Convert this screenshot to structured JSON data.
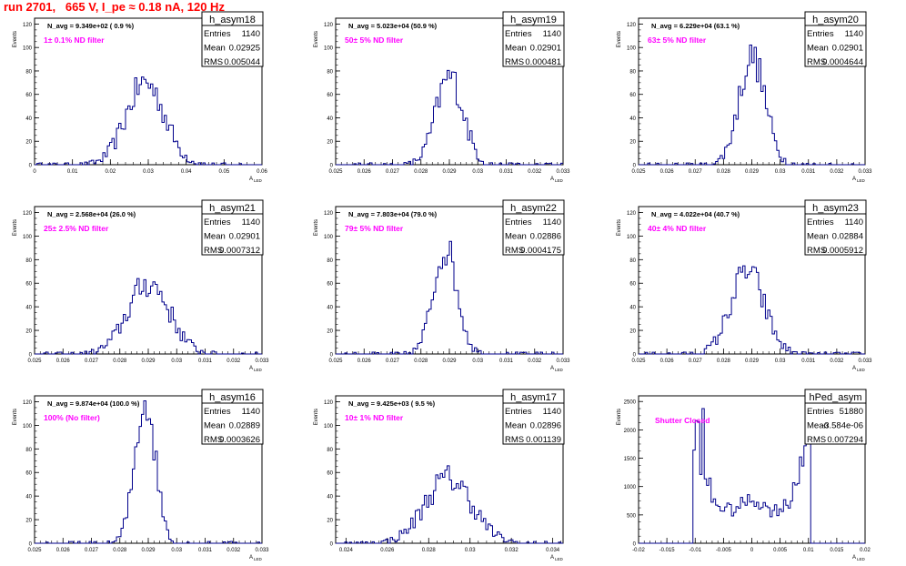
{
  "run_title": "run 2701,   665 V, I_pe ≈ 0.18 nA, 120 Hz",
  "stats_labels": {
    "entries": "Entries",
    "mean": "Mean",
    "rms": "RMS"
  },
  "y_axis_title": "Events",
  "x_axis_title": "A",
  "x_axis_subscript": "LED",
  "colors": {
    "histogram": "#00008b",
    "annotation": "#ff00ff",
    "run_title": "#ff0000",
    "text": "#000000"
  },
  "chart_data": [
    {
      "id": "h_asym18",
      "type": "histogram",
      "name": "h_asym18",
      "navg": "N_avg = 9.349e+02 ( 0.9 %)",
      "filter": "1± 0.1% ND filter",
      "entries": "1140",
      "mean": "0.02925",
      "rms": "0.005044",
      "xlim": [
        0,
        0.06
      ],
      "ylim": [
        0,
        125
      ],
      "xticks": [
        "0",
        "0.01",
        "0.02",
        "0.03",
        "0.04",
        "0.05",
        "0.06"
      ],
      "yticks": [
        "0",
        "20",
        "40",
        "60",
        "80",
        "100",
        "120"
      ],
      "mu": 0.02925,
      "sigma": 0.005044,
      "peak": 70,
      "shape": "gauss"
    },
    {
      "id": "h_asym19",
      "type": "histogram",
      "name": "h_asym19",
      "navg": "N_avg = 5.023e+04 (50.9 %)",
      "filter": "50± 5% ND filter",
      "entries": "1140",
      "mean": "0.02901",
      "rms": "0.000481",
      "xlim": [
        0.025,
        0.033
      ],
      "ylim": [
        0,
        125
      ],
      "xticks": [
        "0.025",
        "0.026",
        "0.027",
        "0.028",
        "0.029",
        "0.03",
        "0.031",
        "0.032",
        "0.033"
      ],
      "yticks": [
        "0",
        "20",
        "40",
        "60",
        "80",
        "100",
        "120"
      ],
      "mu": 0.02901,
      "sigma": 0.000481,
      "peak": 75,
      "shape": "gauss"
    },
    {
      "id": "h_asym20",
      "type": "histogram",
      "name": "h_asym20",
      "navg": "N_avg = 6.229e+04 (63.1 %)",
      "filter": "63± 5% ND filter",
      "entries": "1140",
      "mean": "0.02901",
      "rms": "0.0004644",
      "xlim": [
        0.025,
        0.033
      ],
      "ylim": [
        0,
        125
      ],
      "xticks": [
        "0.025",
        "0.026",
        "0.027",
        "0.028",
        "0.029",
        "0.03",
        "0.031",
        "0.032",
        "0.033"
      ],
      "yticks": [
        "0",
        "20",
        "40",
        "60",
        "80",
        "100",
        "120"
      ],
      "mu": 0.02901,
      "sigma": 0.0004644,
      "peak": 92,
      "shape": "gauss"
    },
    {
      "id": "h_asym21",
      "type": "histogram",
      "name": "h_asym21",
      "navg": "N_avg = 2.568e+04 (26.0 %)",
      "filter": "25± 2.5% ND filter",
      "entries": "1140",
      "mean": "0.02901",
      "rms": "0.0007312",
      "xlim": [
        0.025,
        0.033
      ],
      "ylim": [
        0,
        125
      ],
      "xticks": [
        "0.025",
        "0.026",
        "0.027",
        "0.028",
        "0.029",
        "0.03",
        "0.031",
        "0.032",
        "0.033"
      ],
      "yticks": [
        "0",
        "20",
        "40",
        "60",
        "80",
        "100",
        "120"
      ],
      "mu": 0.02901,
      "sigma": 0.0007312,
      "peak": 60,
      "shape": "gauss"
    },
    {
      "id": "h_asym22",
      "type": "histogram",
      "name": "h_asym22",
      "navg": "N_avg = 7.803e+04 (79.0 %)",
      "filter": "79± 5% ND filter",
      "entries": "1140",
      "mean": "0.02886",
      "rms": "0.0004175",
      "xlim": [
        0.025,
        0.033
      ],
      "ylim": [
        0,
        125
      ],
      "xticks": [
        "0.025",
        "0.026",
        "0.027",
        "0.028",
        "0.029",
        "0.03",
        "0.031",
        "0.032",
        "0.033"
      ],
      "yticks": [
        "0",
        "20",
        "40",
        "60",
        "80",
        "100",
        "120"
      ],
      "mu": 0.02886,
      "sigma": 0.0004175,
      "peak": 90,
      "shape": "gauss"
    },
    {
      "id": "h_asym23",
      "type": "histogram",
      "name": "h_asym23",
      "navg": "N_avg = 4.022e+04 (40.7 %)",
      "filter": "40± 4% ND filter",
      "entries": "1140",
      "mean": "0.02884",
      "rms": "0.0005912",
      "xlim": [
        0.025,
        0.033
      ],
      "ylim": [
        0,
        125
      ],
      "xticks": [
        "0.025",
        "0.026",
        "0.027",
        "0.028",
        "0.029",
        "0.03",
        "0.031",
        "0.032",
        "0.033"
      ],
      "yticks": [
        "0",
        "20",
        "40",
        "60",
        "80",
        "100",
        "120"
      ],
      "mu": 0.02884,
      "sigma": 0.0005912,
      "peak": 70,
      "shape": "gauss"
    },
    {
      "id": "h_asym16",
      "type": "histogram",
      "name": "h_asym16",
      "navg": "N_avg = 9.874e+04 (100.0 %)",
      "filter": "100% (No filter)",
      "entries": "1140",
      "mean": "0.02889",
      "rms": "0.0003626",
      "xlim": [
        0.025,
        0.033
      ],
      "ylim": [
        0,
        125
      ],
      "xticks": [
        "0.025",
        "0.026",
        "0.027",
        "0.028",
        "0.029",
        "0.03",
        "0.031",
        "0.032",
        "0.033"
      ],
      "yticks": [
        "0",
        "20",
        "40",
        "60",
        "80",
        "100",
        "120"
      ],
      "mu": 0.02889,
      "sigma": 0.0003626,
      "peak": 120,
      "shape": "gauss"
    },
    {
      "id": "h_asym17",
      "type": "histogram",
      "name": "h_asym17",
      "navg": "N_avg = 9.425e+03 ( 9.5 %)",
      "filter": "10± 1% ND filter",
      "entries": "1140",
      "mean": "0.02896",
      "rms": "0.001139",
      "xlim": [
        0.0235,
        0.0345
      ],
      "ylim": [
        0,
        125
      ],
      "xticks": [
        "0.024",
        "0.026",
        "0.028",
        "0.03",
        "0.032",
        "0.034"
      ],
      "xtickvals": [
        0.024,
        0.026,
        0.028,
        0.03,
        0.032,
        0.034
      ],
      "yticks": [
        "0",
        "20",
        "40",
        "60",
        "80",
        "100",
        "120"
      ],
      "mu": 0.02896,
      "sigma": 0.001139,
      "peak": 55,
      "shape": "gauss"
    },
    {
      "id": "hPed_asym",
      "type": "histogram",
      "name": "hPed_asym",
      "navg": "",
      "filter": "Shutter Closed",
      "entries": "51880",
      "mean": "-3.584e-06",
      "rms": "0.007294",
      "xlim": [
        -0.02,
        0.02
      ],
      "ylim": [
        0,
        2600
      ],
      "xticks": [
        "-0.02",
        "-0.015",
        "-0.01",
        "-0.005",
        "0",
        "0.005",
        "0.01",
        "0.015",
        "0.02"
      ],
      "yticks": [
        "0",
        "500",
        "1000",
        "1500",
        "2000",
        "2500"
      ],
      "mu": 0,
      "sigma": 0.007294,
      "peak": 2500,
      "shape": "pedestal"
    }
  ]
}
